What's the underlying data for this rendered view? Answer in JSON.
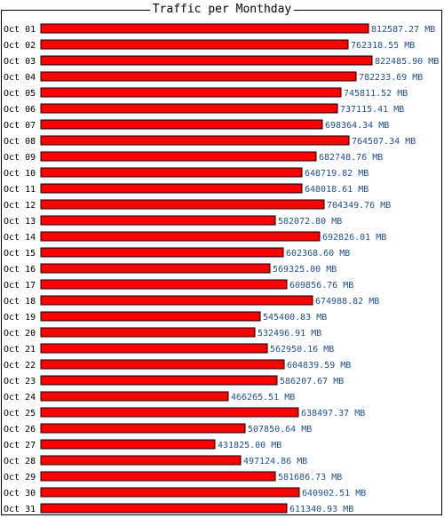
{
  "chart_data": {
    "type": "bar",
    "orientation": "horizontal",
    "title": "Traffic per Monthday",
    "unit": "MB",
    "bar_color": "#ff0000",
    "value_color": "#1f4f8a",
    "categories": [
      "Oct 01",
      "Oct 02",
      "Oct 03",
      "Oct 04",
      "Oct 05",
      "Oct 06",
      "Oct 07",
      "Oct 08",
      "Oct 09",
      "Oct 10",
      "Oct 11",
      "Oct 12",
      "Oct 13",
      "Oct 14",
      "Oct 15",
      "Oct 16",
      "Oct 17",
      "Oct 18",
      "Oct 19",
      "Oct 20",
      "Oct 21",
      "Oct 22",
      "Oct 23",
      "Oct 24",
      "Oct 25",
      "Oct 26",
      "Oct 27",
      "Oct 28",
      "Oct 29",
      "Oct 30",
      "Oct 31"
    ],
    "values": [
      812587.27,
      762318.55,
      822485.9,
      782233.69,
      745811.52,
      737115.41,
      698364.34,
      764507.34,
      682748.76,
      648719.82,
      648018.61,
      704349.76,
      582072.8,
      692826.01,
      602368.6,
      569325.0,
      609856.76,
      674988.82,
      545400.83,
      532496.91,
      562950.16,
      604839.59,
      586207.67,
      466265.51,
      638497.37,
      507850.64,
      431825.0,
      497124.86,
      581686.73,
      640902.51,
      611340.93
    ],
    "value_labels": [
      "812587.27 MB",
      "762318.55 MB",
      "822485.90 MB",
      "782233.69 MB",
      "745811.52 MB",
      "737115.41 MB",
      "698364.34 MB",
      "764507.34 MB",
      "682748.76 MB",
      "648719.82 MB",
      "648018.61 MB",
      "704349.76 MB",
      "582072.80 MB",
      "692826.01 MB",
      "602368.60 MB",
      "569325.00 MB",
      "609856.76 MB",
      "674988.82 MB",
      "545400.83 MB",
      "532496.91 MB",
      "562950.16 MB",
      "604839.59 MB",
      "586207.67 MB",
      "466265.51 MB",
      "638497.37 MB",
      "507850.64 MB",
      "431825.00 MB",
      "497124.86 MB",
      "581686.73 MB",
      "640902.51 MB",
      "611340.93 MB"
    ],
    "xlim": [
      0,
      822485.9
    ]
  }
}
